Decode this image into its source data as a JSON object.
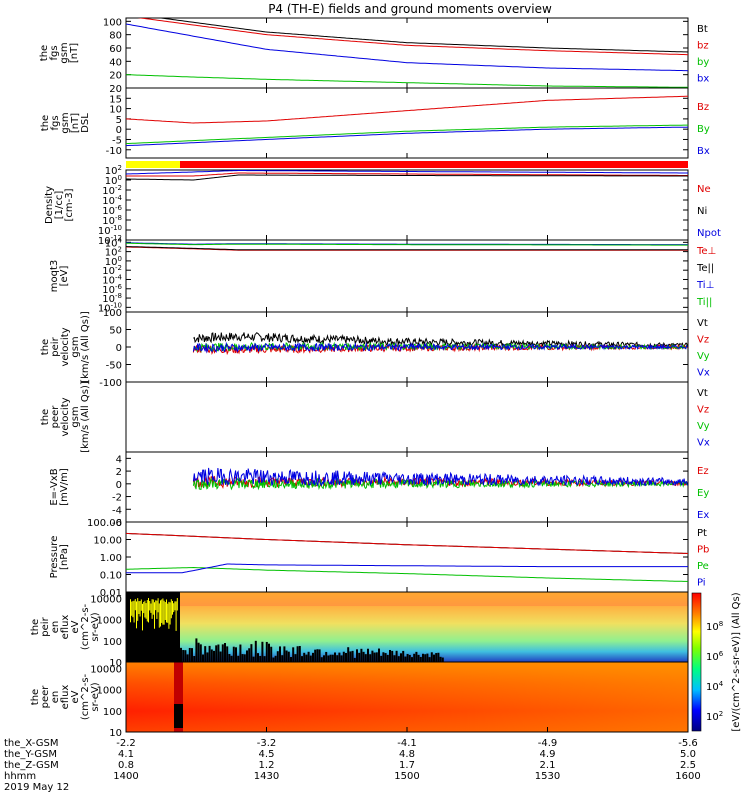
{
  "title": "P4 (TH-E) fields and ground moments overview",
  "date_label": "2019 May 12",
  "time_ticks": [
    "1400",
    "1430",
    "1500",
    "1530",
    "1600"
  ],
  "ephemeris": [
    {
      "label": "the_X-GSM",
      "values": [
        "-2.2",
        "-3.2",
        "-4.1",
        "-4.9",
        "-5.6"
      ]
    },
    {
      "label": "the_Y-GSM",
      "values": [
        "4.1",
        "4.5",
        "4.8",
        "4.9",
        "5.0"
      ]
    },
    {
      "label": "the_Z-GSM",
      "values": [
        "0.8",
        "1.2",
        "1.7",
        "2.1",
        "2.5"
      ]
    },
    {
      "label": "hhmm",
      "values": [
        "1400",
        "1430",
        "1500",
        "1530",
        "1600"
      ]
    }
  ],
  "colorbar_label": "[eV/(cm^2-s-sr-eV)] (All Qs)",
  "colorbar_ticks": [
    "10^2",
    "10^4",
    "10^6",
    "10^8"
  ],
  "chart_data": [
    {
      "type": "line",
      "ylabel": [
        "the",
        "fgs",
        "gsm",
        "[nT]"
      ],
      "yticks": [
        "20",
        "40",
        "60",
        "80",
        "100"
      ],
      "ylim": [
        0,
        105
      ],
      "series": [
        {
          "name": "Bt",
          "color": "#000000",
          "x": [
            0,
            0.25,
            0.5,
            0.75,
            1.0
          ],
          "y": [
            112,
            84,
            68,
            60,
            54
          ]
        },
        {
          "name": "bz",
          "color": "#e00000",
          "x": [
            0,
            0.25,
            0.5,
            0.75,
            1.0
          ],
          "y": [
            108,
            80,
            64,
            56,
            50
          ]
        },
        {
          "name": "by",
          "color": "#00c000",
          "x": [
            0,
            0.1,
            0.25,
            0.5,
            0.75,
            1.0
          ],
          "y": [
            20,
            17,
            13,
            8,
            3,
            1
          ]
        },
        {
          "name": "bx",
          "color": "#0000e0",
          "x": [
            0,
            0.25,
            0.5,
            0.75,
            1.0
          ],
          "y": [
            96,
            58,
            38,
            30,
            26
          ]
        }
      ]
    },
    {
      "type": "line",
      "ylabel": [
        "the",
        "fgs",
        "gsm",
        "[nT]",
        "DSL"
      ],
      "yticks": [
        "-10",
        "-5",
        "0",
        "5",
        "10",
        "15",
        "20"
      ],
      "ylim": [
        -14,
        20
      ],
      "series": [
        {
          "name": "Bz",
          "color": "#e00000",
          "x": [
            0,
            0.06,
            0.12,
            0.25,
            0.5,
            0.75,
            1.0
          ],
          "y": [
            5,
            4,
            3,
            4,
            9,
            14,
            16
          ]
        },
        {
          "name": "By",
          "color": "#00c000",
          "x": [
            0,
            0.25,
            0.5,
            0.75,
            1.0
          ],
          "y": [
            -7,
            -4,
            -1,
            1,
            2
          ]
        },
        {
          "name": "Bx",
          "color": "#0000e0",
          "x": [
            0,
            0.25,
            0.5,
            0.75,
            1.0
          ],
          "y": [
            -8,
            -5,
            -2,
            0,
            1
          ]
        }
      ]
    },
    {
      "type": "line",
      "scale": "log",
      "ylabel": [
        "Density",
        "[1/cc]",
        "[cm-3]"
      ],
      "yticks": [
        "10^-12",
        "10^-10",
        "10^-8",
        "10^-6",
        "10^-4",
        "10^-2",
        "10^0",
        "10^2"
      ],
      "ylim": [
        -12,
        2
      ],
      "series": [
        {
          "name": "Ne",
          "color": "#e00000",
          "x": [
            0,
            0.12,
            0.2,
            0.5,
            1.0
          ],
          "y": [
            0.8,
            0.8,
            1.4,
            1.2,
            0.9
          ]
        },
        {
          "name": "Ni",
          "color": "#000000",
          "x": [
            0,
            0.12,
            0.2,
            0.5,
            1.0
          ],
          "y": [
            0.2,
            0.0,
            1.0,
            0.9,
            0.8
          ]
        },
        {
          "name": "Npot",
          "color": "#0000e0",
          "x": [
            0,
            0.12,
            0.2,
            0.5,
            1.0
          ],
          "y": [
            1.2,
            1.6,
            1.9,
            1.7,
            1.4
          ]
        }
      ]
    },
    {
      "type": "line",
      "scale": "log",
      "ylabel": [
        "moqt3",
        "[eV]"
      ],
      "yticks": [
        "10^-10",
        "10^-8",
        "10^-6",
        "10^-4",
        "10^-2",
        "10^0",
        "10^2",
        "10^4"
      ],
      "ylim": [
        -11,
        4.5
      ],
      "series": [
        {
          "name": "Te⊥",
          "color": "#e00000",
          "x": [
            0,
            0.12,
            0.2,
            0.4,
            1.0
          ],
          "y": [
            3.0,
            2.6,
            2.3,
            2.3,
            2.3
          ]
        },
        {
          "name": "Te||",
          "color": "#000000",
          "x": [
            0,
            0.12,
            0.2,
            0.4,
            1.0
          ],
          "y": [
            3.1,
            2.7,
            2.4,
            2.4,
            2.4
          ]
        },
        {
          "name": "Ti⊥",
          "color": "#0000e0",
          "x": [
            0,
            0.12,
            0.2,
            0.5,
            1.0
          ],
          "y": [
            3.9,
            3.6,
            3.7,
            3.6,
            3.5
          ]
        },
        {
          "name": "Ti||",
          "color": "#00c000",
          "x": [
            0,
            0.12,
            0.2,
            0.5,
            1.0
          ],
          "y": [
            3.8,
            3.5,
            3.6,
            3.5,
            3.4
          ]
        }
      ]
    },
    {
      "type": "line",
      "ylabel": [
        "the",
        "peir",
        "velocity",
        "gsm",
        "[km/s (All Qs)]"
      ],
      "yticks": [
        "-100",
        "-50",
        "0",
        "50",
        "100"
      ],
      "ylim": [
        -100,
        100
      ],
      "series": [
        {
          "name": "Vt",
          "color": "#000000",
          "x": [
            0.12,
            0.2,
            0.5,
            1.0
          ],
          "y": [
            25,
            30,
            15,
            5
          ]
        },
        {
          "name": "Vz",
          "color": "#e00000",
          "x": [
            0.12,
            0.2,
            0.5,
            1.0
          ],
          "y": [
            -5,
            -8,
            -3,
            0
          ]
        },
        {
          "name": "Vy",
          "color": "#00c000",
          "x": [
            0.12,
            0.5,
            1.0
          ],
          "y": [
            0,
            2,
            0
          ]
        },
        {
          "name": "Vx",
          "color": "#0000e0",
          "x": [
            0.12,
            0.5,
            1.0
          ],
          "y": [
            -2,
            0,
            0
          ]
        }
      ]
    },
    {
      "type": "line",
      "ylabel": [
        "the",
        "peer",
        "velocity",
        "gsm",
        "[km/s (All Qs)]"
      ],
      "yticks": [],
      "ylim": [
        -100,
        100
      ],
      "series": [
        {
          "name": "Vt",
          "color": "#000000",
          "x": [],
          "y": []
        },
        {
          "name": "Vz",
          "color": "#e00000",
          "x": [],
          "y": []
        },
        {
          "name": "Vy",
          "color": "#00c000",
          "x": [],
          "y": []
        },
        {
          "name": "Vx",
          "color": "#0000e0",
          "x": [],
          "y": []
        }
      ]
    },
    {
      "type": "line",
      "ylabel": [
        "E=-VxB",
        "[mV/m]"
      ],
      "yticks": [
        "-6",
        "-4",
        "-2",
        "0",
        "2",
        "4"
      ],
      "ylim": [
        -6,
        5
      ],
      "series": [
        {
          "name": "Ez",
          "color": "#e00000",
          "x": [
            0.12,
            0.5,
            1.0
          ],
          "y": [
            0.3,
            0.3,
            0.1
          ]
        },
        {
          "name": "Ey",
          "color": "#00c000",
          "x": [
            0.12,
            0.5,
            1.0
          ],
          "y": [
            0,
            0,
            0
          ]
        },
        {
          "name": "Ex",
          "color": "#0000e0",
          "x": [
            0.12,
            0.5,
            1.0
          ],
          "y": [
            1.2,
            0.8,
            0.3
          ]
        }
      ]
    },
    {
      "type": "line",
      "scale": "log",
      "ylabel": [
        "Pressure",
        "[nPa]"
      ],
      "yticks": [
        "0.01",
        "0.10",
        "1.00",
        "10.00",
        "100.00"
      ],
      "ylim": [
        -2,
        2
      ],
      "series": [
        {
          "name": "Pt",
          "color": "#000000",
          "x": [
            0,
            0.25,
            0.5,
            0.75,
            1.0
          ],
          "y": [
            1.35,
            1.0,
            0.7,
            0.45,
            0.2
          ]
        },
        {
          "name": "Pb",
          "color": "#e00000",
          "x": [
            0,
            0.25,
            0.5,
            0.75,
            1.0
          ],
          "y": [
            1.35,
            1.0,
            0.7,
            0.45,
            0.2
          ]
        },
        {
          "name": "Pe",
          "color": "#00c000",
          "x": [
            0,
            0.12,
            0.25,
            0.5,
            0.75,
            1.0
          ],
          "y": [
            -0.7,
            -0.6,
            -0.75,
            -0.95,
            -1.2,
            -1.4
          ]
        },
        {
          "name": "Pi",
          "color": "#0000e0",
          "x": [
            0,
            0.1,
            0.18,
            0.25,
            0.5,
            0.75,
            1.0
          ],
          "y": [
            -0.9,
            -0.9,
            -0.4,
            -0.45,
            -0.5,
            -0.55,
            -0.55
          ]
        }
      ]
    },
    {
      "type": "heatmap",
      "ylabel": [
        "the",
        "peir",
        "en",
        "eflux",
        "eV",
        "(cm^2-s-",
        "sr-eV)"
      ],
      "yticks": [
        "10",
        "100",
        "1000",
        "10000"
      ],
      "ylim": [
        1,
        4.3
      ]
    },
    {
      "type": "heatmap",
      "ylabel": [
        "the",
        "peer",
        "en",
        "eflux",
        "eV",
        "(cm^2-s-",
        "sr-eV)"
      ],
      "yticks": [
        "10",
        "100",
        "1000",
        "10000"
      ],
      "ylim": [
        1,
        4.3
      ]
    }
  ]
}
